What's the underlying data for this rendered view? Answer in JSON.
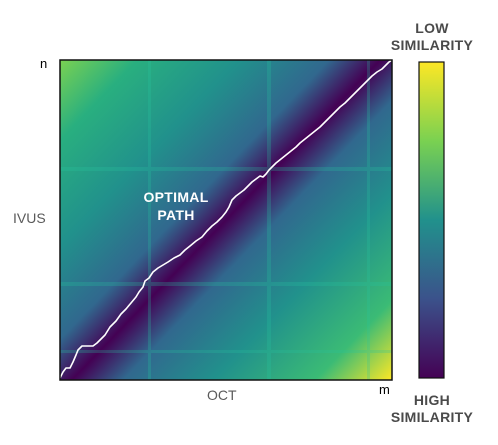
{
  "axes": {
    "y_label": "IVUS",
    "x_label": "OCT",
    "y_end_label": "n",
    "x_end_label": "m"
  },
  "annotation": {
    "line1": "OPTIMAL",
    "line2": "PATH"
  },
  "colorbar": {
    "top_line1": "LOW",
    "top_line2": "SIMILARITY",
    "bottom_line1": "HIGH",
    "bottom_line2": "SIMILARITY",
    "stops": [
      "#fde725",
      "#5ec962",
      "#21918c",
      "#3b528b",
      "#440154"
    ]
  },
  "colors": {
    "path": "#ffffff",
    "valley": "#440154",
    "corner_high": "#fde725",
    "grid_band": "#21918c"
  }
}
